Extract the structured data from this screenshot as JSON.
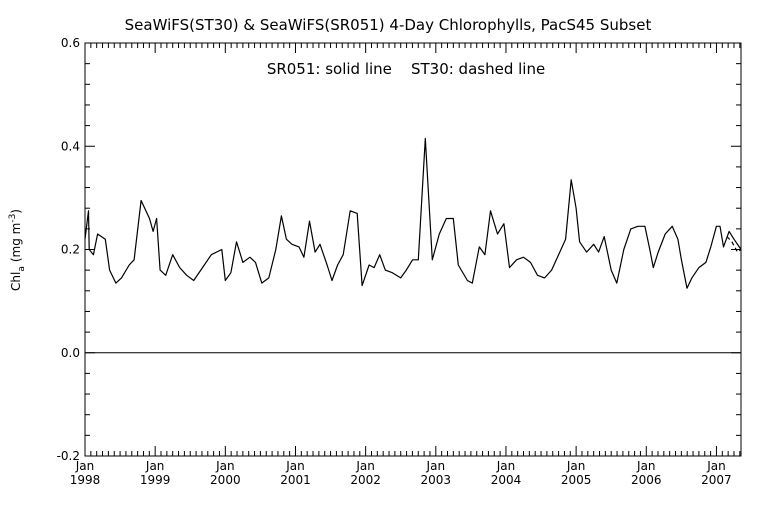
{
  "chart_data": {
    "type": "line",
    "title": "SeaWiFS(ST30) & SeaWiFS(SR051) 4-Day Chlorophylls, PacS45 Subset",
    "annotation": "SR051: solid line    ST30: dashed line",
    "ylabel_main": "Chl",
    "ylabel_sub": "a",
    "ylabel_unit": "(mg m",
    "ylabel_exp": "-3",
    "ylabel_close": ")",
    "xlabel": "",
    "xlim": [
      1998.0,
      2007.35
    ],
    "ylim": [
      -0.2,
      0.6
    ],
    "yticks": [
      -0.2,
      0.0,
      0.2,
      0.4,
      0.6
    ],
    "ytick_labels": [
      "-0.2",
      "0.0",
      "0.2",
      "0.4",
      "0.6"
    ],
    "xticks": [
      {
        "x": 1998,
        "month": "Jan",
        "year": "1998"
      },
      {
        "x": 1999,
        "month": "Jan",
        "year": "1999"
      },
      {
        "x": 2000,
        "month": "Jan",
        "year": "2000"
      },
      {
        "x": 2001,
        "month": "Jan",
        "year": "2001"
      },
      {
        "x": 2002,
        "month": "Jan",
        "year": "2002"
      },
      {
        "x": 2003,
        "month": "Jan",
        "year": "2003"
      },
      {
        "x": 2004,
        "month": "Jan",
        "year": "2004"
      },
      {
        "x": 2005,
        "month": "Jan",
        "year": "2005"
      },
      {
        "x": 2006,
        "month": "Jan",
        "year": "2006"
      },
      {
        "x": 2007,
        "month": "Jan",
        "year": "2007"
      }
    ],
    "reference_line_y": 0.0,
    "grid": false,
    "series": [
      {
        "name": "SR051",
        "style": "solid",
        "color": "#000000",
        "points": [
          [
            1998.0,
            0.22
          ],
          [
            1998.05,
            0.275
          ],
          [
            1998.06,
            0.2
          ],
          [
            1998.12,
            0.19
          ],
          [
            1998.18,
            0.23
          ],
          [
            1998.29,
            0.22
          ],
          [
            1998.35,
            0.16
          ],
          [
            1998.44,
            0.135
          ],
          [
            1998.52,
            0.145
          ],
          [
            1998.63,
            0.17
          ],
          [
            1998.7,
            0.18
          ],
          [
            1998.8,
            0.295
          ],
          [
            1998.92,
            0.26
          ],
          [
            1998.97,
            0.235
          ],
          [
            1999.02,
            0.26
          ],
          [
            1999.07,
            0.16
          ],
          [
            1999.15,
            0.15
          ],
          [
            1999.25,
            0.19
          ],
          [
            1999.35,
            0.165
          ],
          [
            1999.45,
            0.15
          ],
          [
            1999.55,
            0.14
          ],
          [
            1999.65,
            0.16
          ],
          [
            1999.8,
            0.19
          ],
          [
            1999.95,
            0.2
          ],
          [
            2000.0,
            0.14
          ],
          [
            2000.08,
            0.155
          ],
          [
            2000.16,
            0.215
          ],
          [
            2000.25,
            0.175
          ],
          [
            2000.35,
            0.185
          ],
          [
            2000.43,
            0.175
          ],
          [
            2000.52,
            0.135
          ],
          [
            2000.62,
            0.145
          ],
          [
            2000.72,
            0.2
          ],
          [
            2000.8,
            0.265
          ],
          [
            2000.87,
            0.22
          ],
          [
            2000.95,
            0.21
          ],
          [
            2001.05,
            0.205
          ],
          [
            2001.12,
            0.185
          ],
          [
            2001.2,
            0.255
          ],
          [
            2001.28,
            0.195
          ],
          [
            2001.35,
            0.21
          ],
          [
            2001.45,
            0.17
          ],
          [
            2001.52,
            0.14
          ],
          [
            2001.6,
            0.17
          ],
          [
            2001.68,
            0.19
          ],
          [
            2001.78,
            0.275
          ],
          [
            2001.88,
            0.27
          ],
          [
            2001.95,
            0.13
          ],
          [
            2002.05,
            0.17
          ],
          [
            2002.12,
            0.165
          ],
          [
            2002.2,
            0.19
          ],
          [
            2002.28,
            0.16
          ],
          [
            2002.38,
            0.155
          ],
          [
            2002.5,
            0.145
          ],
          [
            2002.58,
            0.16
          ],
          [
            2002.67,
            0.18
          ],
          [
            2002.75,
            0.18
          ],
          [
            2002.85,
            0.415
          ],
          [
            2002.95,
            0.18
          ],
          [
            2003.05,
            0.23
          ],
          [
            2003.15,
            0.26
          ],
          [
            2003.25,
            0.26
          ],
          [
            2003.32,
            0.17
          ],
          [
            2003.45,
            0.14
          ],
          [
            2003.52,
            0.135
          ],
          [
            2003.62,
            0.205
          ],
          [
            2003.7,
            0.19
          ],
          [
            2003.78,
            0.275
          ],
          [
            2003.88,
            0.23
          ],
          [
            2003.97,
            0.25
          ],
          [
            2004.05,
            0.165
          ],
          [
            2004.15,
            0.18
          ],
          [
            2004.25,
            0.185
          ],
          [
            2004.35,
            0.175
          ],
          [
            2004.45,
            0.15
          ],
          [
            2004.55,
            0.145
          ],
          [
            2004.65,
            0.16
          ],
          [
            2004.75,
            0.19
          ],
          [
            2004.85,
            0.22
          ],
          [
            2004.93,
            0.335
          ],
          [
            2005.0,
            0.28
          ],
          [
            2005.05,
            0.215
          ],
          [
            2005.15,
            0.195
          ],
          [
            2005.25,
            0.21
          ],
          [
            2005.32,
            0.195
          ],
          [
            2005.4,
            0.225
          ],
          [
            2005.5,
            0.16
          ],
          [
            2005.58,
            0.135
          ],
          [
            2005.68,
            0.2
          ],
          [
            2005.78,
            0.24
          ],
          [
            2005.88,
            0.245
          ],
          [
            2005.98,
            0.245
          ],
          [
            2006.05,
            0.2
          ],
          [
            2006.1,
            0.165
          ],
          [
            2006.17,
            0.195
          ],
          [
            2006.27,
            0.23
          ],
          [
            2006.37,
            0.245
          ],
          [
            2006.45,
            0.22
          ],
          [
            2006.5,
            0.18
          ],
          [
            2006.58,
            0.125
          ],
          [
            2006.65,
            0.145
          ],
          [
            2006.75,
            0.165
          ],
          [
            2006.85,
            0.175
          ],
          [
            2006.92,
            0.205
          ],
          [
            2007.0,
            0.245
          ],
          [
            2007.05,
            0.245
          ],
          [
            2007.1,
            0.205
          ],
          [
            2007.18,
            0.235
          ],
          [
            2007.25,
            0.22
          ],
          [
            2007.35,
            0.2
          ]
        ]
      },
      {
        "name": "ST30",
        "style": "dashed",
        "color": "#000000",
        "points": [
          [
            2007.15,
            0.225
          ],
          [
            2007.22,
            0.215
          ],
          [
            2007.3,
            0.195
          ],
          [
            2007.35,
            0.2
          ]
        ]
      }
    ]
  }
}
